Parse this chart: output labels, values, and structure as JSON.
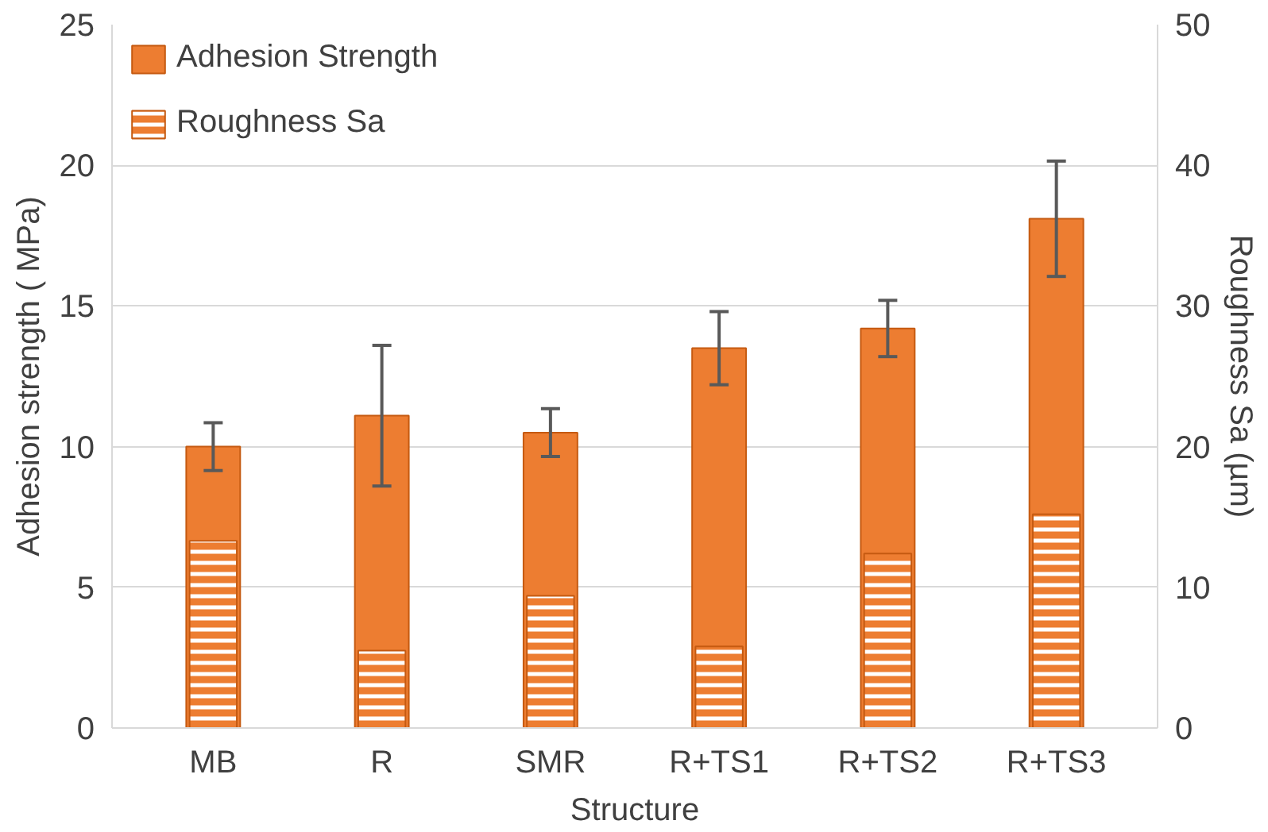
{
  "chart_data": {
    "type": "bar",
    "xlabel": "Structure",
    "ylabel": "Adhesion strength ( MPa)",
    "y2label": "Roughness Sa (µm)",
    "categories": [
      "MB",
      "R",
      "SMR",
      "R+TS1",
      "R+TS2",
      "R+TS3"
    ],
    "series": [
      {
        "name": "Adhesion Strength",
        "color": "#ed7d31",
        "values": [
          10.0,
          11.1,
          10.5,
          13.5,
          14.2,
          18.1
        ],
        "errors": [
          0.85,
          2.5,
          0.85,
          1.3,
          1.0,
          2.05
        ]
      },
      {
        "name": "Roughness Sa",
        "color": "#ed7d31",
        "axis": "y2",
        "values": [
          13.3,
          5.5,
          9.4,
          5.8,
          12.4,
          15.2
        ]
      }
    ],
    "ylim": [
      0,
      25
    ],
    "yticks": [
      0,
      5,
      10,
      15,
      20,
      25
    ],
    "y2lim": [
      0,
      50
    ],
    "y2ticks": [
      0,
      10,
      20,
      30,
      40,
      50
    ],
    "grid": "y",
    "legend": "top left"
  }
}
